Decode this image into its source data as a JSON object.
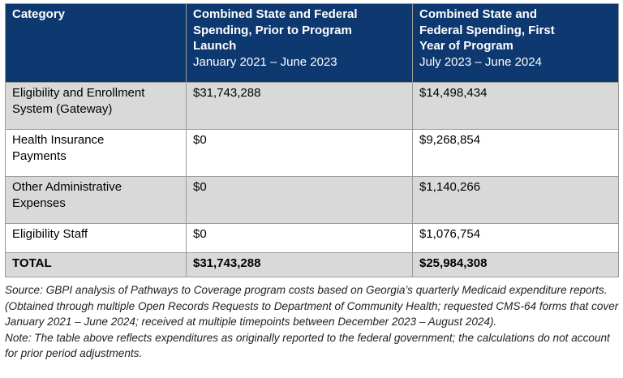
{
  "headers": [
    {
      "bold": "Category",
      "normal": ""
    },
    {
      "bold": "Combined State and Federal Spending, Prior to Program Launch",
      "normal": "January 2021 – June 2023"
    },
    {
      "bold": "Combined State and Federal Spending, First Year of Program",
      "normal": "July 2023 – June 2024"
    }
  ],
  "rows": [
    {
      "category": "Eligibility and Enrollment System (Gateway)",
      "prior": "$31,743,288",
      "first_year": "$14,498,434"
    },
    {
      "category": "Health Insurance Payments",
      "prior": "$0",
      "first_year": "$9,268,854"
    },
    {
      "category": "Other Administrative Expenses",
      "prior": "$0",
      "first_year": "$1,140,266"
    },
    {
      "category": "Eligibility Staff",
      "prior": "$0",
      "first_year": "$1,076,754"
    },
    {
      "category": "TOTAL",
      "prior": "$31,743,288",
      "first_year": "$25,984,308"
    }
  ],
  "source": "Source: GBPI analysis of Pathways to Coverage program costs based on Georgia’s quarterly Medicaid expenditure reports. (Obtained through multiple Open Records Requests to Department of Community Health; requested CMS-64 forms that cover January 2021 – June 2024; received at multiple timepoints between December 2023 – August 2024).",
  "note": "Note: The table above reflects expenditures as originally reported to the federal government; the calculations do not account for prior period adjustments.",
  "colors": {
    "header_bg": "#0d3870",
    "stripe": "#d9d9d9"
  }
}
